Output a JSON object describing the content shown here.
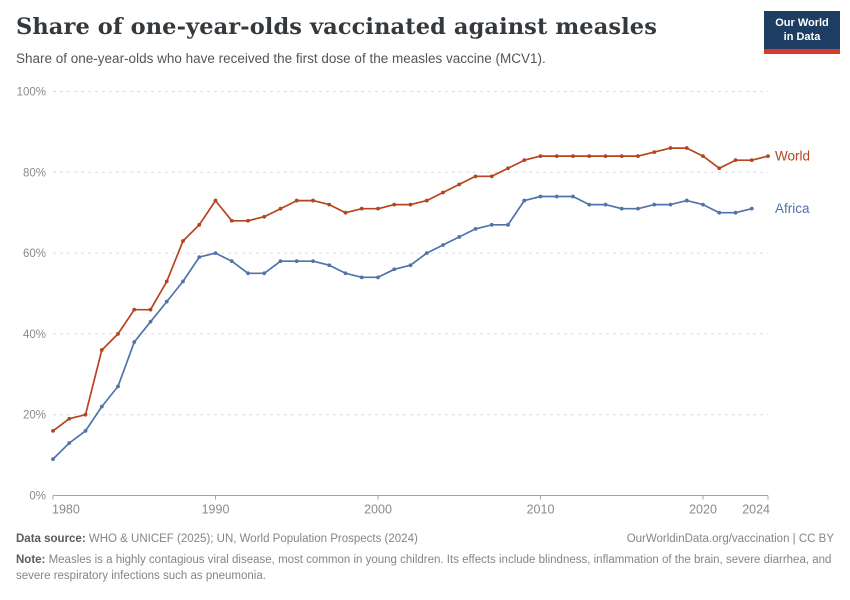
{
  "header": {
    "title": "Share of one-year-olds vaccinated against measles",
    "subtitle": "Share of one-year-olds who have received the first dose of the measles vaccine (MCV1).",
    "logo": {
      "line1": "Our World",
      "line2": "in Data",
      "bg_color": "#1d3d63",
      "stripe_color": "#d93b2b"
    }
  },
  "chart_data": {
    "type": "line",
    "title": "Share of one-year-olds vaccinated against measles",
    "xlabel": "",
    "ylabel": "",
    "xlim": [
      1980,
      2024
    ],
    "ylim": [
      0,
      100
    ],
    "x_ticks": [
      1980,
      1990,
      2000,
      2010,
      2020,
      2024
    ],
    "x_tick_labels": [
      "1980",
      "1990",
      "2000",
      "2010",
      "2020",
      "2024"
    ],
    "y_ticks": [
      0,
      20,
      40,
      60,
      80,
      100
    ],
    "y_tick_labels": [
      "0%",
      "20%",
      "40%",
      "60%",
      "80%",
      "100%"
    ],
    "grid": "horizontal dashed",
    "legend_position": "labels at line ends, right side",
    "series": [
      {
        "name": "World",
        "color": "#b5441f",
        "start_year": 1980,
        "end_year": 2024,
        "values": [
          16,
          19,
          20,
          36,
          40,
          46,
          46,
          53,
          63,
          67,
          73,
          68,
          68,
          69,
          71,
          73,
          73,
          72,
          70,
          71,
          71,
          72,
          72,
          73,
          75,
          77,
          79,
          79,
          81,
          83,
          84,
          84,
          84,
          84,
          84,
          84,
          84,
          85,
          86,
          86,
          84,
          81,
          83,
          83,
          84
        ]
      },
      {
        "name": "Africa",
        "color": "#5173a9",
        "start_year": 1980,
        "end_year": 2023,
        "values": [
          9,
          13,
          16,
          22,
          27,
          38,
          43,
          48,
          53,
          59,
          60,
          58,
          55,
          55,
          58,
          58,
          58,
          57,
          55,
          54,
          54,
          56,
          57,
          60,
          62,
          64,
          66,
          67,
          67,
          73,
          74,
          74,
          74,
          72,
          72,
          71,
          71,
          72,
          72,
          73,
          72,
          70,
          70,
          71
        ]
      }
    ]
  },
  "footer": {
    "datasource_label": "Data source:",
    "datasource_text": " WHO & UNICEF (2025); UN, World Population Prospects (2024)",
    "link_text": "OurWorldinData.org/vaccination | CC BY",
    "note_label": "Note:",
    "note_text": " Measles is a highly contagious viral disease, most common in young children. Its effects include blindness, inflammation of the brain, severe diarrhea, and severe respiratory infections such as pneumonia."
  }
}
